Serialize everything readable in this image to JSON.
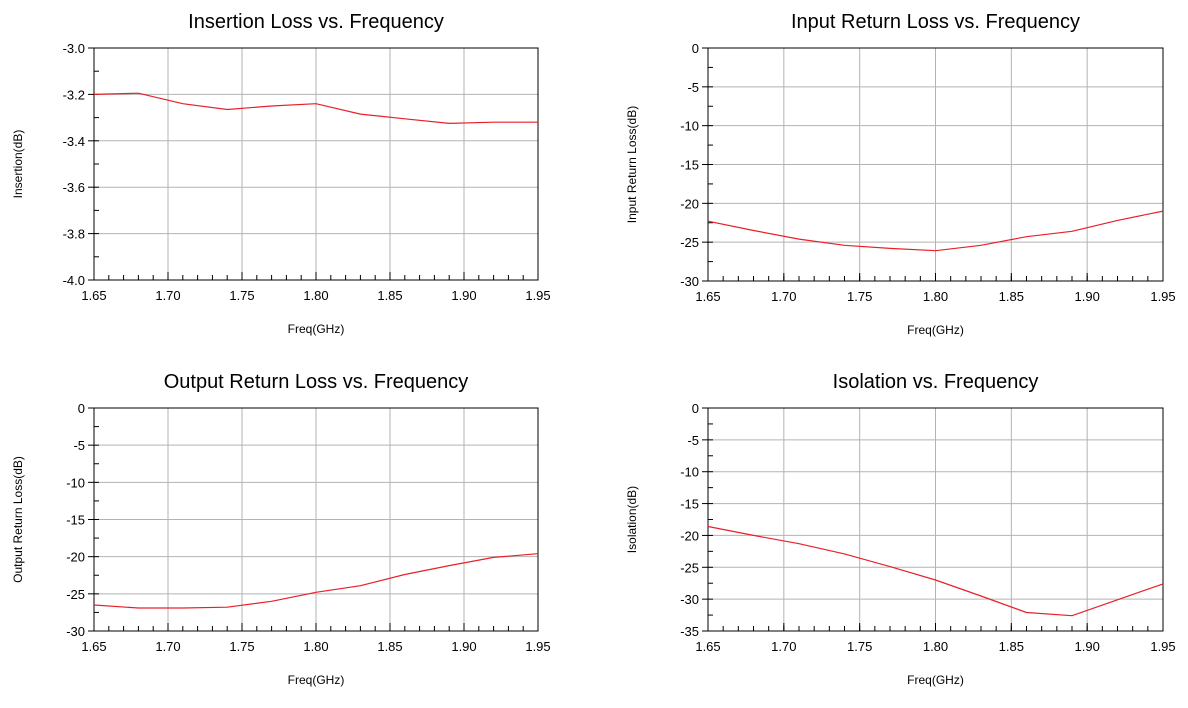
{
  "chart_data": [
    {
      "type": "line",
      "title": "Insertion Loss vs. Frequency",
      "xlabel": "Freq(GHz)",
      "ylabel": "Insertion(dB)",
      "xlim": [
        1.65,
        1.95
      ],
      "ylim": [
        -4.0,
        -3.0
      ],
      "xticks": [
        1.65,
        1.7,
        1.75,
        1.8,
        1.85,
        1.9,
        1.95
      ],
      "xtick_labels": [
        "1.65",
        "1.70",
        "1.75",
        "1.80",
        "1.85",
        "1.90",
        "1.95"
      ],
      "yticks": [
        -4.0,
        -3.8,
        -3.6,
        -3.4,
        -3.2,
        -3.0
      ],
      "ytick_labels": [
        "-4.0",
        "-3.8",
        "-3.6",
        "-3.4",
        "-3.2",
        "-3.0"
      ],
      "grid": true,
      "series_color": "#e8202a",
      "x": [
        1.65,
        1.68,
        1.71,
        1.74,
        1.77,
        1.8,
        1.83,
        1.86,
        1.89,
        1.92,
        1.95
      ],
      "y": [
        -3.2,
        -3.195,
        -3.24,
        -3.265,
        -3.25,
        -3.24,
        -3.285,
        -3.305,
        -3.325,
        -3.32,
        -3.32
      ]
    },
    {
      "type": "line",
      "title": "Input Return Loss vs. Frequency",
      "xlabel": "Freq(GHz)",
      "ylabel": "Input Return Loss(dB)",
      "xlim": [
        1.65,
        1.95
      ],
      "ylim": [
        -30,
        0
      ],
      "xticks": [
        1.65,
        1.7,
        1.75,
        1.8,
        1.85,
        1.9,
        1.95
      ],
      "xtick_labels": [
        "1.65",
        "1.70",
        "1.75",
        "1.80",
        "1.85",
        "1.90",
        "1.95"
      ],
      "yticks": [
        -30,
        -25,
        -20,
        -15,
        -10,
        -5,
        0
      ],
      "ytick_labels": [
        "-30",
        "-25",
        "-20",
        "-15",
        "-10",
        "-5",
        "0"
      ],
      "grid": true,
      "series_color": "#e8202a",
      "x": [
        1.65,
        1.68,
        1.71,
        1.74,
        1.77,
        1.8,
        1.83,
        1.86,
        1.89,
        1.92,
        1.95
      ],
      "y": [
        -22.3,
        -23.5,
        -24.6,
        -25.4,
        -25.8,
        -26.1,
        -25.4,
        -24.3,
        -23.6,
        -22.2,
        -21.0
      ]
    },
    {
      "type": "line",
      "title": "Output Return Loss vs. Frequency",
      "xlabel": "Freq(GHz)",
      "ylabel": "Output Return Loss(dB)",
      "xlim": [
        1.65,
        1.95
      ],
      "ylim": [
        -30,
        0
      ],
      "xticks": [
        1.65,
        1.7,
        1.75,
        1.8,
        1.85,
        1.9,
        1.95
      ],
      "xtick_labels": [
        "1.65",
        "1.70",
        "1.75",
        "1.80",
        "1.85",
        "1.90",
        "1.95"
      ],
      "yticks": [
        -30,
        -25,
        -20,
        -15,
        -10,
        -5,
        0
      ],
      "ytick_labels": [
        "-30",
        "-25",
        "-20",
        "-15",
        "-10",
        "-5",
        "0"
      ],
      "grid": true,
      "series_color": "#e8202a",
      "x": [
        1.65,
        1.68,
        1.71,
        1.74,
        1.77,
        1.8,
        1.83,
        1.86,
        1.89,
        1.92,
        1.95
      ],
      "y": [
        -26.5,
        -26.9,
        -26.9,
        -26.8,
        -26.0,
        -24.8,
        -23.9,
        -22.4,
        -21.2,
        -20.1,
        -19.6
      ]
    },
    {
      "type": "line",
      "title": "Isolation vs. Frequency",
      "xlabel": "Freq(GHz)",
      "ylabel": "Isolation(dB)",
      "xlim": [
        1.65,
        1.95
      ],
      "ylim": [
        -35,
        0
      ],
      "xticks": [
        1.65,
        1.7,
        1.75,
        1.8,
        1.85,
        1.9,
        1.95
      ],
      "xtick_labels": [
        "1.65",
        "1.70",
        "1.75",
        "1.80",
        "1.85",
        "1.90",
        "1.95"
      ],
      "yticks": [
        -35,
        -30,
        -25,
        -20,
        -15,
        -10,
        -5,
        0
      ],
      "ytick_labels": [
        "-35",
        "-30",
        "-25",
        "-20",
        "-15",
        "-10",
        "-5",
        "0"
      ],
      "grid": true,
      "series_color": "#e8202a",
      "x": [
        1.65,
        1.68,
        1.71,
        1.74,
        1.77,
        1.8,
        1.83,
        1.86,
        1.89,
        1.92,
        1.95
      ],
      "y": [
        -18.6,
        -20.0,
        -21.3,
        -22.9,
        -24.9,
        -27.0,
        -29.5,
        -32.1,
        -32.6,
        -30.1,
        -27.6
      ]
    }
  ]
}
